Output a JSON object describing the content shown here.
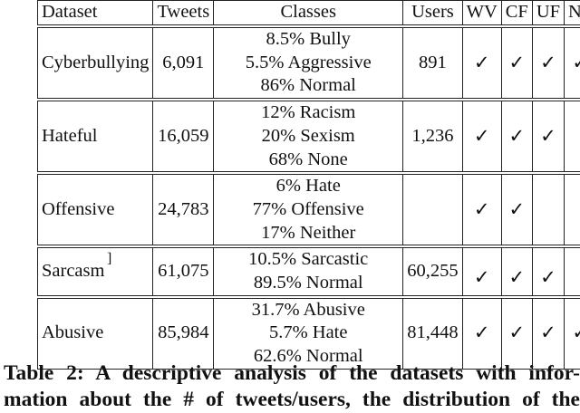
{
  "table": {
    "headers": {
      "dataset": "Dataset",
      "tweets": "Tweets",
      "classes": "Classes",
      "users": "Users",
      "wv": "WV",
      "cf": "CF",
      "uf": "UF",
      "nf": "NF"
    },
    "check_symbol": "✓",
    "rows": [
      {
        "dataset": "Cyberbullying",
        "tweets": "6,091",
        "classes": [
          "8.5% Bully",
          "5.5% Aggressive",
          "86% Normal"
        ],
        "users": "891",
        "wv": "✓",
        "cf": "✓",
        "uf": "✓",
        "nf": "✓"
      },
      {
        "dataset": "Hateful",
        "tweets": "16,059",
        "classes": [
          "12% Racism",
          "20% Sexism",
          "68% None"
        ],
        "users": "1,236",
        "wv": "✓",
        "cf": "✓",
        "uf": "✓",
        "nf": ""
      },
      {
        "dataset": "Offensive",
        "tweets": "24,783",
        "classes": [
          "6% Hate",
          "77% Offensive",
          "17% Neither"
        ],
        "users": "",
        "wv": "✓",
        "cf": "✓",
        "uf": "",
        "nf": ""
      },
      {
        "dataset": "Sarcasm",
        "tweets": "61,075",
        "classes": [
          "10.5% Sarcastic",
          "89.5% Normal"
        ],
        "users": "60,255",
        "wv": "✓",
        "cf": "✓",
        "uf": "✓",
        "nf": "",
        "bracket": "]"
      },
      {
        "dataset": "Abusive",
        "tweets": "85,984",
        "classes": [
          "31.7% Abusive",
          "5.7% Hate",
          "62.6% Normal"
        ],
        "users": "81,448",
        "wv": "✓",
        "cf": "✓",
        "uf": "✓",
        "nf": "✓"
      }
    ]
  },
  "caption": {
    "line1": "Table 2: A descriptive analysis of the datasets with infor-",
    "line2": "mation about the # of tweets/users, the distribution of the"
  }
}
